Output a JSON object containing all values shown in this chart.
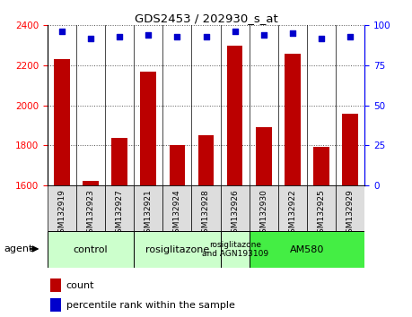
{
  "title": "GDS2453 / 202930_s_at",
  "samples": [
    "GSM132919",
    "GSM132923",
    "GSM132927",
    "GSM132921",
    "GSM132924",
    "GSM132928",
    "GSM132926",
    "GSM132930",
    "GSM132922",
    "GSM132925",
    "GSM132929"
  ],
  "counts": [
    2230,
    1622,
    1838,
    2170,
    1800,
    1850,
    2300,
    1893,
    2258,
    1793,
    1960
  ],
  "percentiles": [
    96,
    92,
    93,
    94,
    93,
    93,
    96,
    94,
    95,
    92,
    93
  ],
  "bar_color": "#bb0000",
  "dot_color": "#0000cc",
  "ylim_left": [
    1600,
    2400
  ],
  "ylim_right": [
    0,
    100
  ],
  "yticks_left": [
    1600,
    1800,
    2000,
    2200,
    2400
  ],
  "yticks_right": [
    0,
    25,
    50,
    75,
    100
  ],
  "groups": [
    {
      "label": "control",
      "start": 0,
      "end": 3,
      "color": "#ccffcc"
    },
    {
      "label": "rosiglitazone",
      "start": 3,
      "end": 6,
      "color": "#ccffcc"
    },
    {
      "label": "rosiglitazone\nand AGN193109",
      "start": 6,
      "end": 7,
      "color": "#ccffcc"
    },
    {
      "label": "AM580",
      "start": 7,
      "end": 11,
      "color": "#44ee44"
    }
  ],
  "legend_count_color": "#bb0000",
  "legend_dot_color": "#0000cc",
  "agent_label": "agent",
  "background_color": "#ffffff",
  "grid_color": "#555555",
  "tick_label_bg": "#dddddd"
}
